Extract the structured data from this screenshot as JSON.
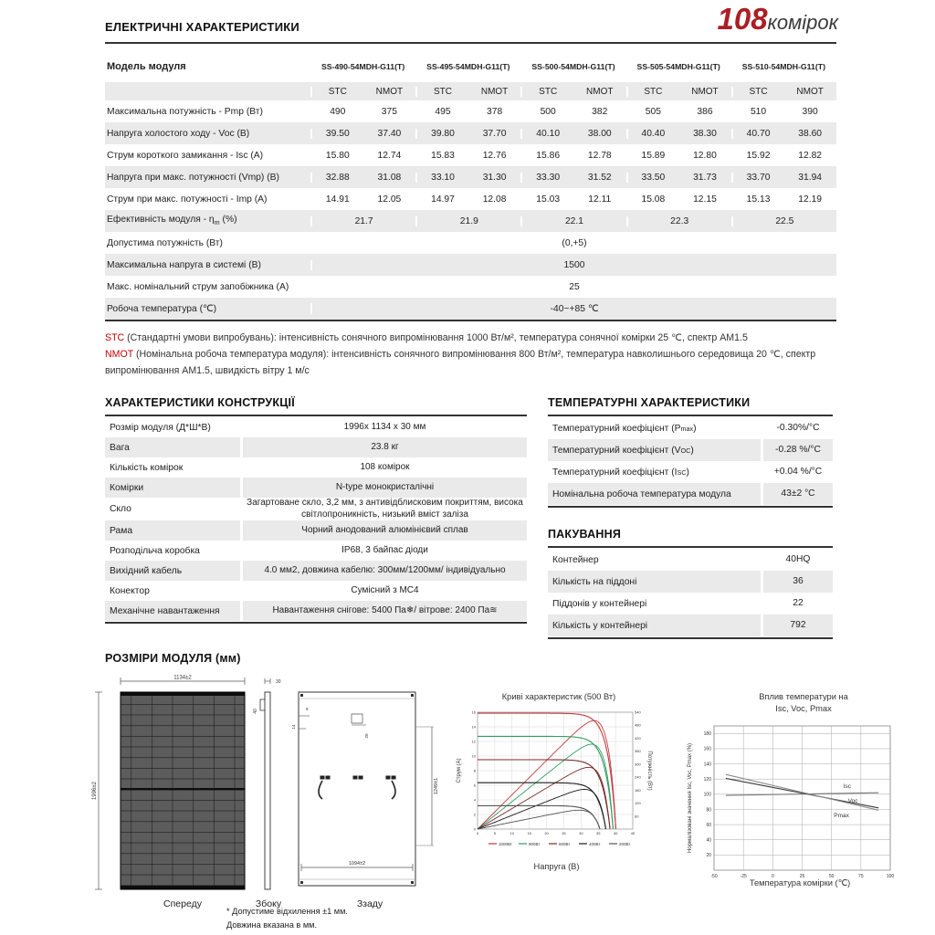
{
  "logo": {
    "number": "108",
    "text": "комірок",
    "number_color": "#ab1f24"
  },
  "electrical": {
    "title": "ЕЛЕКТРИЧНІ ХАРАКТЕРИСТИКИ",
    "model_label": "Модель модуля",
    "models": [
      "SS-490-54MDH-G11(T)",
      "SS-495-54MDH-G11(T)",
      "SS-500-54MDH-G11(T)",
      "SS-505-54MDH-G11(T)",
      "SS-510-54MDH-G11(T)"
    ],
    "sub_headers": [
      "STC",
      "NMOT"
    ],
    "rows": [
      {
        "label": "Максимальна потужність  -  Pmp (Вт)",
        "values": [
          "490",
          "375",
          "495",
          "378",
          "500",
          "382",
          "505",
          "386",
          "510",
          "390"
        ]
      },
      {
        "label": "Напруга холостого ходу - Voc (В)",
        "values": [
          "39.50",
          "37.40",
          "39.80",
          "37.70",
          "40.10",
          "38.00",
          "40.40",
          "38.30",
          "40.70",
          "38.60"
        ]
      },
      {
        "label": "Струм короткого замикання - Isc (А)",
        "values": [
          "15.80",
          "12.74",
          "15.83",
          "12.76",
          "15.86",
          "12.78",
          "15.89",
          "12.80",
          "15.92",
          "12.82"
        ]
      },
      {
        "label": "Напруга при макс. потужності (Vmp) (В)",
        "values": [
          "32.88",
          "31.08",
          "33.10",
          "31.30",
          "33.30",
          "31.52",
          "33.50",
          "31.73",
          "33.70",
          "31.94"
        ]
      },
      {
        "label": "Струм при макс. потужності - Imp (А)",
        "values": [
          "14.91",
          "12.05",
          "14.97",
          "12.08",
          "15.03",
          "12.11",
          "15.08",
          "12.15",
          "15.13",
          "12.19"
        ]
      }
    ],
    "efficiency_row": {
      "label_pre": "Ефективність модуля  -  η",
      "label_sub": "m",
      "label_post": " (%)",
      "values": [
        "21.7",
        "21.9",
        "22.1",
        "22.3",
        "22.5"
      ]
    },
    "full_rows": [
      {
        "label": "Допустима потужність (Вт)",
        "value": "(0,+5)"
      },
      {
        "label": "Максимальна напруга в системі (В)",
        "value": "1500"
      },
      {
        "label": "Макс. номінальний струм запобіжника (А)",
        "value": "25"
      },
      {
        "label": "Робоча температура (℃)",
        "value": "-40~+85 ℃"
      }
    ]
  },
  "notes": {
    "stc_label": "STC",
    "stc_text": "  (Стандартні умови випробувань): інтенсивність сонячного випромінювання 1000 Вт/м², температура сонячної комірки 25 ℃, спектр АМ1.5",
    "nmot_label": "NMOT",
    "nmot_text": " (Номінальна робоча температура модуля): інтенсивність сонячного випромінювання 800 Вт/м², температура навколишнього середовища 20 ℃, спектр випромінювання АМ1.5, швидкість вітру 1 м/с"
  },
  "construction": {
    "title": "ХАРАКТЕРИСТИКИ КОНСТРУКЦІЇ",
    "rows": [
      {
        "label": "Розмір модуля (Д*Ш*В)",
        "value": "1996х 1134 х 30 мм"
      },
      {
        "label": "Вага",
        "value": "23.8 кг"
      },
      {
        "label": "Кількість комірок",
        "value": "108 комірок"
      },
      {
        "label": "Комірки",
        "value": "N-type монокристалічні"
      },
      {
        "label": "Скло",
        "value": "Загартоване скло, 3,2 мм, з антивідблисковим покриттям, висока світлопроникність, низький вміст заліза"
      },
      {
        "label": "Рама",
        "value": "Чорний анодований алюмінієвий сплав"
      },
      {
        "label": "Розподільча коробка",
        "value": "IP68, 3 байпас діоди"
      },
      {
        "label": "Вихідний кабель",
        "value": "4.0 мм2, довжина кабелю: 300мм/1200мм/ індивідуально"
      },
      {
        "label": "Конектор",
        "value": "Сумісний з MC4"
      },
      {
        "label": "Механічне навантаження",
        "value": [
          {
            "t": "Навантаження снігове: 5400 Па "
          },
          {
            "icon": "snowflake-icon",
            "glyph": "❄"
          },
          {
            "t": " / вітрове: 2400 Па "
          },
          {
            "icon": "wind-icon",
            "glyph": "≋"
          }
        ]
      }
    ]
  },
  "temperature": {
    "title": "ТЕМПЕРАТУРНІ ХАРАКТЕРИСТИКИ",
    "rows": [
      {
        "pre": "Температурний коефіцієнт (P",
        "sub": "max",
        "post": " )",
        "value": "-0.30%/°C"
      },
      {
        "pre": "Температурний коефіцієнт (V",
        "sub": "OC",
        "post": " )",
        "value": "-0.28 %/°C"
      },
      {
        "pre": "Температурний коефіцієнт (I",
        "sub": "SC",
        "post": " )",
        "value": "+0.04 %/°C"
      },
      {
        "pre": "Номінальна робоча температура модула",
        "sub": "",
        "post": "",
        "value": "43±2 °C"
      }
    ]
  },
  "packaging": {
    "title": "ПАКУВАННЯ",
    "rows": [
      {
        "label": "Контейнер",
        "value": "40HQ"
      },
      {
        "label": "Кількість на піддоні",
        "value": "36"
      },
      {
        "label": "Піддонів у контейнері",
        "value": "22"
      },
      {
        "label": "Кількість у контейнері",
        "value": "792"
      }
    ]
  },
  "dimensions": {
    "title": "РОЗМІРИ МОДУЛЯ (мм)",
    "front_label": "Спереду",
    "side_label": "Збоку",
    "back_label": "Ззаду",
    "width_dim": "1134±2",
    "height_dim": "1996±2",
    "depth_dim": "30",
    "back_width_dim": "1094±2",
    "back_height_dim": "1249±1",
    "detail_dims": [
      "40",
      "9",
      "14",
      "20"
    ],
    "notes": [
      "* Допустиме відхилення ±1 мм.",
      "Довжина вказана в мм."
    ]
  },
  "chart_data": [
    {
      "type": "line",
      "title": "Криві характеристик (500 Вт)",
      "xlabel": "Напруга (В)",
      "ylabel": "Струм (А)",
      "y2label": "Потужність (Вт)",
      "xlim": [
        0,
        45
      ],
      "ylim": [
        0,
        16
      ],
      "y2lim": [
        0,
        540
      ],
      "grid": true,
      "legend_position": "bottom",
      "series": [
        {
          "name": "1000Вт",
          "color": "#c23a3f",
          "isc": 15.86,
          "voc": 40.1
        },
        {
          "name": "800Вт",
          "color": "#2f9e60",
          "isc": 12.7,
          "voc": 39.3
        },
        {
          "name": "600Вт",
          "color": "#7a2a2a",
          "isc": 9.5,
          "voc": 38.4
        },
        {
          "name": "400Вт",
          "color": "#1c1c1c",
          "isc": 6.35,
          "voc": 37.2
        },
        {
          "name": "200Вт",
          "color": "#555555",
          "isc": 3.2,
          "voc": 35.5
        }
      ]
    },
    {
      "type": "line",
      "title_lines": [
        "Вплив температури на",
        "Isc, Voc, Pmax"
      ],
      "xlabel": "Температура комірки   (℃)",
      "ylabel": "Нормалізовані значення Isc, Voc, Pmax (%)",
      "xlim": [
        -50,
        100
      ],
      "xticks": [
        -50,
        -25,
        0,
        25,
        50,
        75,
        100
      ],
      "ylim": [
        0,
        190
      ],
      "yticks": [
        20,
        40,
        60,
        80,
        100,
        120,
        140,
        160,
        180
      ],
      "grid": true,
      "series": [
        {
          "name": "Isc",
          "color": "#777777",
          "points": [
            [
              -40,
              98.5
            ],
            [
              90,
              102
            ]
          ],
          "label_pos": [
            60,
            108
          ]
        },
        {
          "name": "Voc",
          "color": "#3a3a3a",
          "points": [
            [
              -40,
              121
            ],
            [
              90,
              82
            ]
          ],
          "label_pos": [
            64,
            89
          ]
        },
        {
          "name": "Pmax",
          "color": "#8d8d8d",
          "points": [
            [
              -40,
              126
            ],
            [
              90,
              79
            ]
          ],
          "label_pos": [
            52,
            70
          ]
        }
      ]
    }
  ]
}
